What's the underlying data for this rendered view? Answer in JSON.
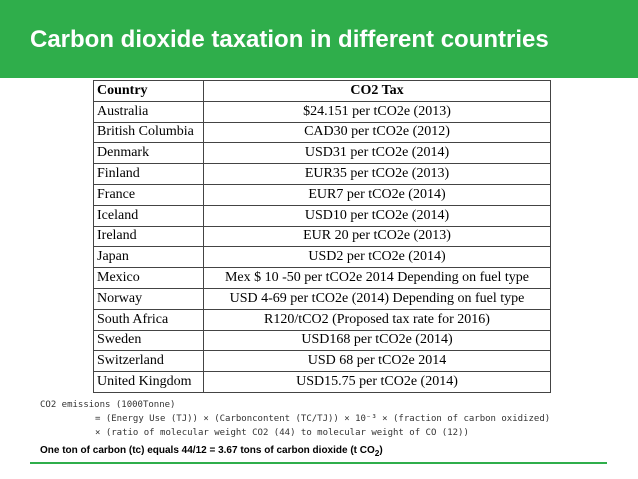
{
  "title": "Carbon dioxide taxation in different countries",
  "table": {
    "header": [
      "Country",
      "CO2 Tax"
    ],
    "rows": [
      [
        "Australia",
        "$24.151 per tCO2e (2013)"
      ],
      [
        "British Columbia",
        "CAD30 per tCO2e (2012)"
      ],
      [
        "Denmark",
        "USD31 per tCO2e (2014)"
      ],
      [
        "Finland",
        "EUR35 per tCO2e (2013)"
      ],
      [
        "France",
        "EUR7 per tCO2e (2014)"
      ],
      [
        "Iceland",
        "USD10 per tCO2e (2014)"
      ],
      [
        "Ireland",
        "EUR 20 per tCO2e (2013)"
      ],
      [
        "Japan",
        "USD2 per tCO2e (2014)"
      ],
      [
        "Mexico",
        "Mex $ 10 -50 per tCO2e 2014 Depending on fuel type"
      ],
      [
        "Norway",
        "USD 4-69 per tCO2e (2014) Depending on fuel type"
      ],
      [
        "South Africa",
        "R120/tCO2 (Proposed tax rate for 2016)"
      ],
      [
        "Sweden",
        "USD168 per tCO2e (2014)"
      ],
      [
        "Switzerland",
        "USD 68 per tCO2e 2014"
      ],
      [
        "United Kingdom",
        "USD15.75 per tCO2e (2014)"
      ]
    ]
  },
  "formula": {
    "lines": [
      "CO2 emissions (1000Tonne)",
      "= (Energy Use (TJ)) × (Carboncontent (TC/TJ)) × 10⁻³ × (fraction of carbon oxidized)",
      "× (ratio of molecular weight CO2 (44) to molecular weight of CO (12))"
    ]
  },
  "note": {
    "text": "One ton of carbon (tc) equals 44/12 = 3.67 tons of carbon dioxide (t CO",
    "subscript": "2",
    "tail": ")"
  }
}
